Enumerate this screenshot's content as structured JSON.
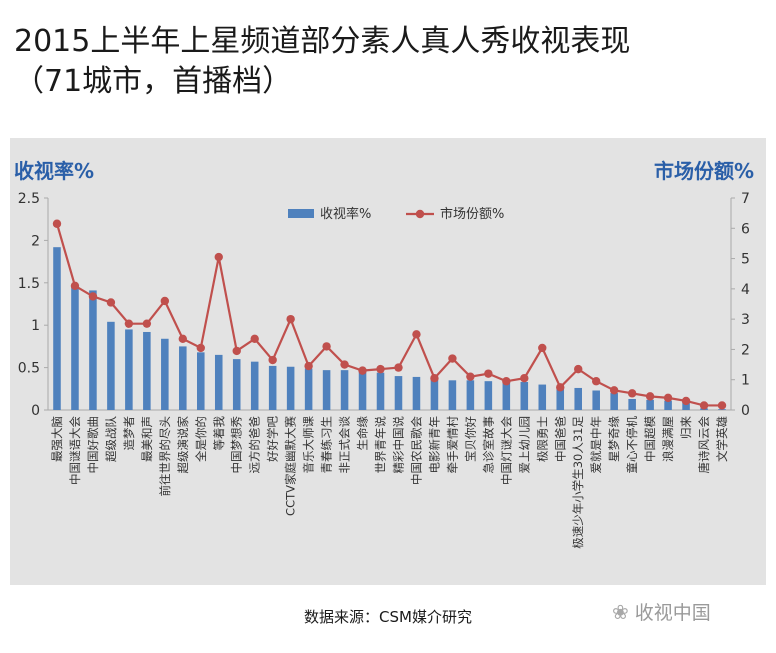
{
  "title_line1": "2015上半年上星频道部分素人真人秀收视表现",
  "title_line2": "（71城市，首播档）",
  "left_axis_title": "收视率%",
  "right_axis_title": "市场份额%",
  "source": "数据来源：CSM媒介研究",
  "watermark": "收视中国",
  "colors": {
    "bar": "#4f81bd",
    "line": "#c0504d",
    "axis_title": "#2a5fa8",
    "panel": "#e3e3e3"
  },
  "chart_data": {
    "type": "bar+line",
    "categories": [
      "最强大脑",
      "中国谜语大会",
      "中国好歌曲",
      "超级战队",
      "造梦者",
      "最美和声",
      "前往世界的尽头",
      "超级演说家",
      "全是你的",
      "等着我",
      "中国梦想秀",
      "远方的爸爸",
      "好好学吧",
      "CCTV家庭幽默大赛",
      "音乐大师课",
      "青春练习生",
      "非正式会谈",
      "生命缘",
      "世界青年说",
      "精彩中国说",
      "中国农民歌会",
      "电影新青年",
      "牵手爱情村",
      "宝贝你好",
      "急诊室故事",
      "中国灯谜大会",
      "爱上幼儿园",
      "极限勇士",
      "中国爸爸",
      "极速少年小学生30人31足",
      "爱就是中年",
      "星梦奇缘",
      "童心不停机",
      "中国超模",
      "浪漫满屋",
      "归来",
      "唐诗风云会",
      "文学英雄"
    ],
    "series": [
      {
        "name": "收视率%",
        "type": "bar",
        "axis": "left",
        "values": [
          1.92,
          1.48,
          1.41,
          1.04,
          0.95,
          0.92,
          0.84,
          0.75,
          0.68,
          0.65,
          0.6,
          0.57,
          0.52,
          0.51,
          0.49,
          0.47,
          0.47,
          0.45,
          0.44,
          0.4,
          0.39,
          0.36,
          0.35,
          0.35,
          0.34,
          0.33,
          0.33,
          0.3,
          0.27,
          0.26,
          0.23,
          0.2,
          0.13,
          0.12,
          0.11,
          0.1,
          0.02,
          0.01
        ]
      },
      {
        "name": "市场份额%",
        "type": "line",
        "axis": "right",
        "values": [
          6.15,
          4.1,
          3.75,
          3.55,
          2.85,
          2.85,
          3.6,
          2.35,
          2.05,
          5.05,
          1.95,
          2.35,
          1.65,
          3.0,
          1.45,
          2.1,
          1.5,
          1.3,
          1.35,
          1.4,
          2.5,
          1.05,
          1.7,
          1.1,
          1.2,
          0.95,
          1.05,
          2.05,
          0.75,
          1.35,
          0.95,
          0.65,
          0.55,
          0.45,
          0.4,
          0.3,
          0.15,
          0.15
        ]
      }
    ],
    "y_left": {
      "min": 0,
      "max": 2.5,
      "ticks": [
        "0",
        "0.5",
        "1",
        "1.5",
        "2",
        "2.5"
      ]
    },
    "y_right": {
      "min": 0,
      "max": 7,
      "ticks": [
        "0",
        "1",
        "2",
        "3",
        "4",
        "5",
        "6",
        "7"
      ]
    },
    "legend": {
      "position": "top-center",
      "items": [
        "收视率%",
        "市场份额%"
      ]
    }
  }
}
